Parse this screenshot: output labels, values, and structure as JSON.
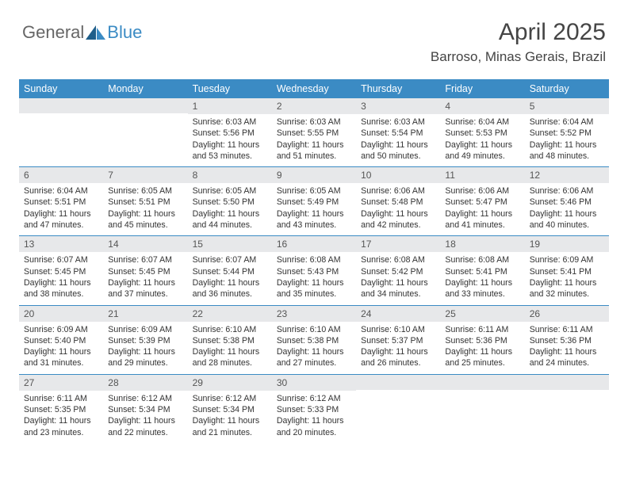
{
  "logo": {
    "part1": "General",
    "part2": "Blue"
  },
  "title": "April 2025",
  "location": "Barroso, Minas Gerais, Brazil",
  "colors": {
    "header_bg": "#3b8bc4",
    "daynum_bg": "#e7e8ea",
    "text": "#333333",
    "title_text": "#454545",
    "border": "#3b8bc4"
  },
  "dayHeaders": [
    "Sunday",
    "Monday",
    "Tuesday",
    "Wednesday",
    "Thursday",
    "Friday",
    "Saturday"
  ],
  "weeks": [
    [
      {
        "n": "",
        "sr": "",
        "ss": "",
        "dl": ""
      },
      {
        "n": "",
        "sr": "",
        "ss": "",
        "dl": ""
      },
      {
        "n": "1",
        "sr": "Sunrise: 6:03 AM",
        "ss": "Sunset: 5:56 PM",
        "dl": "Daylight: 11 hours and 53 minutes."
      },
      {
        "n": "2",
        "sr": "Sunrise: 6:03 AM",
        "ss": "Sunset: 5:55 PM",
        "dl": "Daylight: 11 hours and 51 minutes."
      },
      {
        "n": "3",
        "sr": "Sunrise: 6:03 AM",
        "ss": "Sunset: 5:54 PM",
        "dl": "Daylight: 11 hours and 50 minutes."
      },
      {
        "n": "4",
        "sr": "Sunrise: 6:04 AM",
        "ss": "Sunset: 5:53 PM",
        "dl": "Daylight: 11 hours and 49 minutes."
      },
      {
        "n": "5",
        "sr": "Sunrise: 6:04 AM",
        "ss": "Sunset: 5:52 PM",
        "dl": "Daylight: 11 hours and 48 minutes."
      }
    ],
    [
      {
        "n": "6",
        "sr": "Sunrise: 6:04 AM",
        "ss": "Sunset: 5:51 PM",
        "dl": "Daylight: 11 hours and 47 minutes."
      },
      {
        "n": "7",
        "sr": "Sunrise: 6:05 AM",
        "ss": "Sunset: 5:51 PM",
        "dl": "Daylight: 11 hours and 45 minutes."
      },
      {
        "n": "8",
        "sr": "Sunrise: 6:05 AM",
        "ss": "Sunset: 5:50 PM",
        "dl": "Daylight: 11 hours and 44 minutes."
      },
      {
        "n": "9",
        "sr": "Sunrise: 6:05 AM",
        "ss": "Sunset: 5:49 PM",
        "dl": "Daylight: 11 hours and 43 minutes."
      },
      {
        "n": "10",
        "sr": "Sunrise: 6:06 AM",
        "ss": "Sunset: 5:48 PM",
        "dl": "Daylight: 11 hours and 42 minutes."
      },
      {
        "n": "11",
        "sr": "Sunrise: 6:06 AM",
        "ss": "Sunset: 5:47 PM",
        "dl": "Daylight: 11 hours and 41 minutes."
      },
      {
        "n": "12",
        "sr": "Sunrise: 6:06 AM",
        "ss": "Sunset: 5:46 PM",
        "dl": "Daylight: 11 hours and 40 minutes."
      }
    ],
    [
      {
        "n": "13",
        "sr": "Sunrise: 6:07 AM",
        "ss": "Sunset: 5:45 PM",
        "dl": "Daylight: 11 hours and 38 minutes."
      },
      {
        "n": "14",
        "sr": "Sunrise: 6:07 AM",
        "ss": "Sunset: 5:45 PM",
        "dl": "Daylight: 11 hours and 37 minutes."
      },
      {
        "n": "15",
        "sr": "Sunrise: 6:07 AM",
        "ss": "Sunset: 5:44 PM",
        "dl": "Daylight: 11 hours and 36 minutes."
      },
      {
        "n": "16",
        "sr": "Sunrise: 6:08 AM",
        "ss": "Sunset: 5:43 PM",
        "dl": "Daylight: 11 hours and 35 minutes."
      },
      {
        "n": "17",
        "sr": "Sunrise: 6:08 AM",
        "ss": "Sunset: 5:42 PM",
        "dl": "Daylight: 11 hours and 34 minutes."
      },
      {
        "n": "18",
        "sr": "Sunrise: 6:08 AM",
        "ss": "Sunset: 5:41 PM",
        "dl": "Daylight: 11 hours and 33 minutes."
      },
      {
        "n": "19",
        "sr": "Sunrise: 6:09 AM",
        "ss": "Sunset: 5:41 PM",
        "dl": "Daylight: 11 hours and 32 minutes."
      }
    ],
    [
      {
        "n": "20",
        "sr": "Sunrise: 6:09 AM",
        "ss": "Sunset: 5:40 PM",
        "dl": "Daylight: 11 hours and 31 minutes."
      },
      {
        "n": "21",
        "sr": "Sunrise: 6:09 AM",
        "ss": "Sunset: 5:39 PM",
        "dl": "Daylight: 11 hours and 29 minutes."
      },
      {
        "n": "22",
        "sr": "Sunrise: 6:10 AM",
        "ss": "Sunset: 5:38 PM",
        "dl": "Daylight: 11 hours and 28 minutes."
      },
      {
        "n": "23",
        "sr": "Sunrise: 6:10 AM",
        "ss": "Sunset: 5:38 PM",
        "dl": "Daylight: 11 hours and 27 minutes."
      },
      {
        "n": "24",
        "sr": "Sunrise: 6:10 AM",
        "ss": "Sunset: 5:37 PM",
        "dl": "Daylight: 11 hours and 26 minutes."
      },
      {
        "n": "25",
        "sr": "Sunrise: 6:11 AM",
        "ss": "Sunset: 5:36 PM",
        "dl": "Daylight: 11 hours and 25 minutes."
      },
      {
        "n": "26",
        "sr": "Sunrise: 6:11 AM",
        "ss": "Sunset: 5:36 PM",
        "dl": "Daylight: 11 hours and 24 minutes."
      }
    ],
    [
      {
        "n": "27",
        "sr": "Sunrise: 6:11 AM",
        "ss": "Sunset: 5:35 PM",
        "dl": "Daylight: 11 hours and 23 minutes."
      },
      {
        "n": "28",
        "sr": "Sunrise: 6:12 AM",
        "ss": "Sunset: 5:34 PM",
        "dl": "Daylight: 11 hours and 22 minutes."
      },
      {
        "n": "29",
        "sr": "Sunrise: 6:12 AM",
        "ss": "Sunset: 5:34 PM",
        "dl": "Daylight: 11 hours and 21 minutes."
      },
      {
        "n": "30",
        "sr": "Sunrise: 6:12 AM",
        "ss": "Sunset: 5:33 PM",
        "dl": "Daylight: 11 hours and 20 minutes."
      },
      {
        "n": "",
        "sr": "",
        "ss": "",
        "dl": ""
      },
      {
        "n": "",
        "sr": "",
        "ss": "",
        "dl": ""
      },
      {
        "n": "",
        "sr": "",
        "ss": "",
        "dl": ""
      }
    ]
  ]
}
